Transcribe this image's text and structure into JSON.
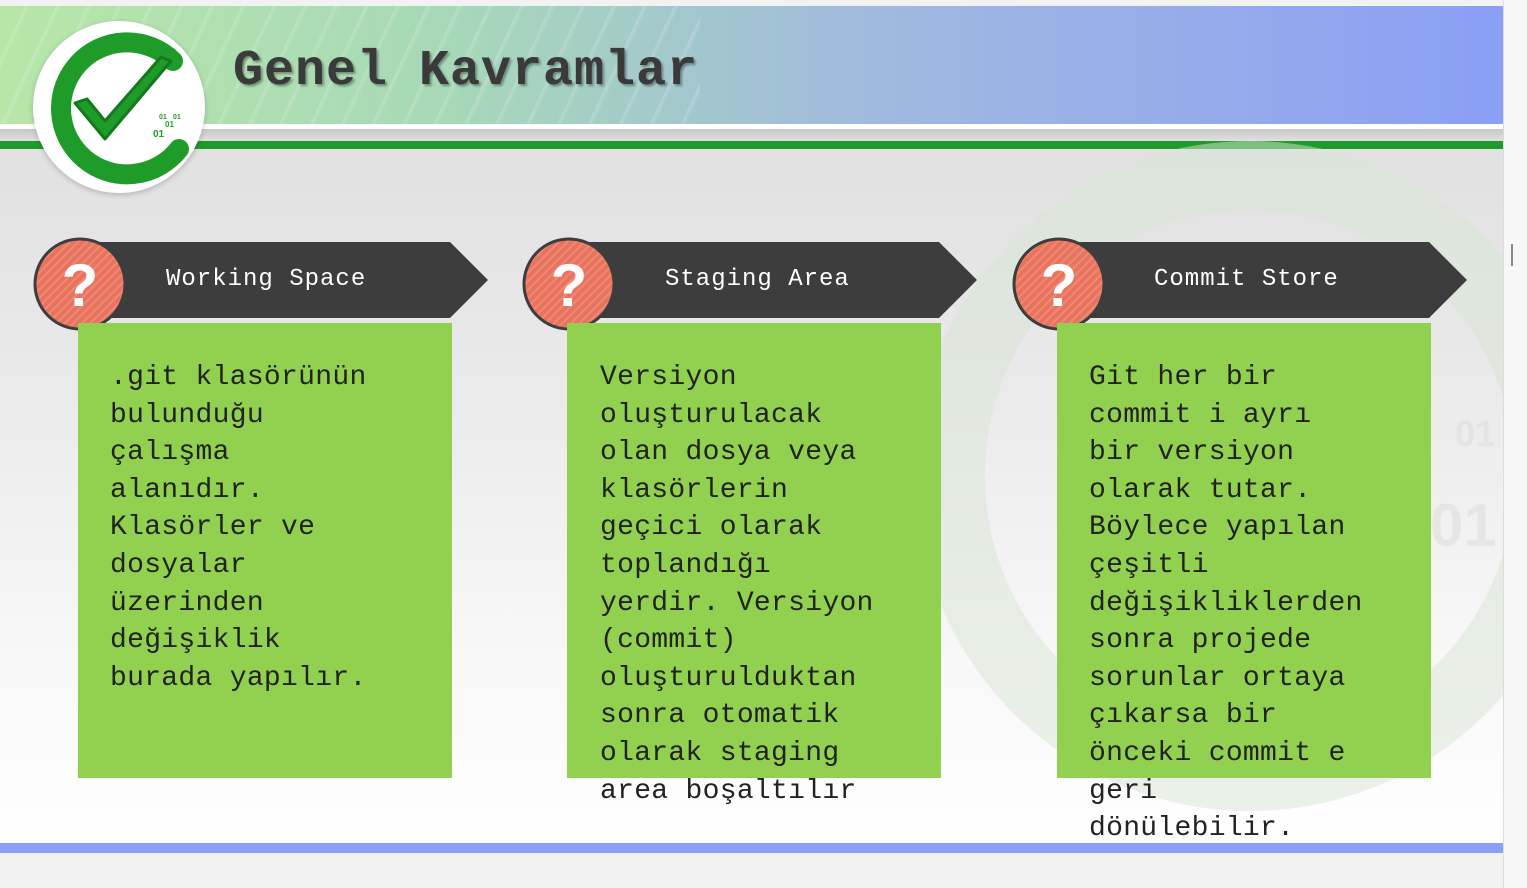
{
  "slide": {
    "title": "Genel Kavramlar"
  },
  "colors": {
    "header_green": "#1f9b2a",
    "card_body": "#92d050",
    "card_banner": "#3d3d3d",
    "question_circle": "#e8735e",
    "bottom_bar": "#8a9ff5"
  },
  "logo": {
    "icon": "checkmark-logo-icon",
    "text_lines": [
      "01",
      "01",
      "01",
      "01"
    ]
  },
  "cards": [
    {
      "title": "Working Space",
      "icon": "question-mark-icon",
      "text": ".git klasörünün\nbulunduğu\nçalışma\nalanıdır.\nKlasörler ve\ndosyalar\nüzerinden\ndeğişiklik\nburada yapılır."
    },
    {
      "title": "Staging Area",
      "icon": "question-mark-icon",
      "text": "Versiyon\noluşturulacak\nolan dosya veya\nklasörlerin\ngeçici olarak\ntoplandığı\nyerdir. Versiyon\n(commit)\noluşturulduktan\nsonra otomatik\nolarak staging\narea boşaltılır"
    },
    {
      "title": "Commit Store",
      "icon": "question-mark-icon",
      "text": "Git her bir\ncommit i ayrı\nbir versiyon\nolarak tutar.\nBöylece yapılan\nçeşitli\ndeğişikliklerden\nsonra projede\nsorunlar ortaya\nçıkarsa bir\nönceki commit e\ngeri\ndönülebilir."
    }
  ]
}
